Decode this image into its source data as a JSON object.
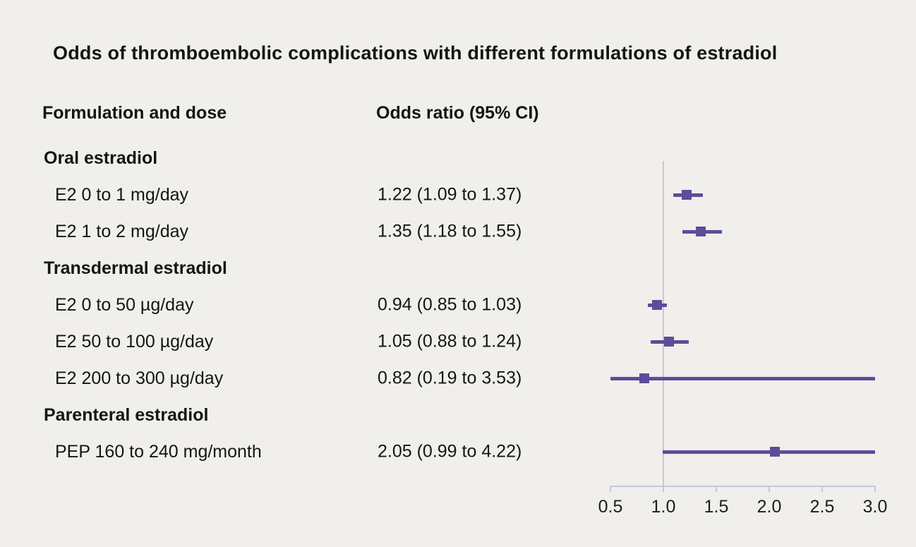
{
  "chart_data": {
    "type": "forest",
    "title": "Odds of thromboembolic complications with different formulations of estradiol",
    "col1_header": "Formulation and dose",
    "col2_header": "Odds ratio (95% CI)",
    "xlim": [
      0.5,
      3.0
    ],
    "x_ticks": [
      0.5,
      1.0,
      1.5,
      2.0,
      2.5,
      3.0
    ],
    "x_tick_labels": [
      "0.5",
      "1.0",
      "1.5",
      "2.0",
      "2.5",
      "3.0"
    ],
    "reference_line": 1.0,
    "marker_color": "#5d4c9a",
    "axis_color": "#c9c5d8",
    "background_color": "#f0efec",
    "rows": [
      {
        "kind": "group",
        "label": "Oral estradiol"
      },
      {
        "kind": "item",
        "label": "E2 0 to 1 mg/day",
        "or_text": "1.22 (1.09 to 1.37)",
        "or": 1.22,
        "lo": 1.09,
        "hi": 1.37
      },
      {
        "kind": "item",
        "label": "E2 1 to 2 mg/day",
        "or_text": "1.35 (1.18 to 1.55)",
        "or": 1.35,
        "lo": 1.18,
        "hi": 1.55
      },
      {
        "kind": "group",
        "label": "Transdermal estradiol"
      },
      {
        "kind": "item",
        "label": "E2 0 to 50 µg/day",
        "or_text": "0.94 (0.85 to 1.03)",
        "or": 0.94,
        "lo": 0.85,
        "hi": 1.03
      },
      {
        "kind": "item",
        "label": "E2 50 to 100 µg/day",
        "or_text": "1.05 (0.88 to 1.24)",
        "or": 1.05,
        "lo": 0.88,
        "hi": 1.24
      },
      {
        "kind": "item",
        "label": "E2 200 to 300 µg/day",
        "or_text": "0.82 (0.19 to 3.53)",
        "or": 0.82,
        "lo": 0.19,
        "hi": 3.53
      },
      {
        "kind": "group",
        "label": "Parenteral estradiol"
      },
      {
        "kind": "item",
        "label": "PEP 160 to 240 mg/month",
        "or_text": "2.05 (0.99 to 4.22)",
        "or": 2.05,
        "lo": 0.99,
        "hi": 4.22
      }
    ]
  }
}
